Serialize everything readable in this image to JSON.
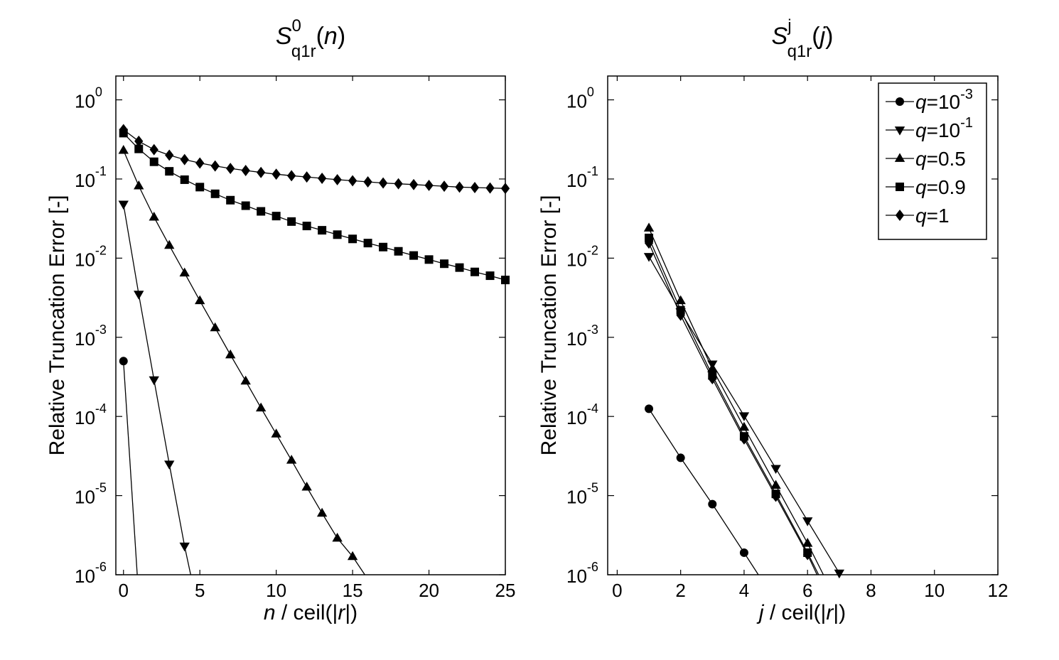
{
  "chart_data": [
    {
      "type": "line",
      "title": {
        "base": "S",
        "sup": "0",
        "sub": "q1r",
        "arg": "n"
      },
      "xlabel": {
        "var": "n",
        "rest": " / ceil(|",
        "inner": "r",
        "end": "|)"
      },
      "ylabel": "Relative Truncation Error [-]",
      "xlim": [
        -0.5,
        25
      ],
      "ylim": [
        1e-06,
        2
      ],
      "yscale": "log",
      "xticks": [
        0,
        5,
        10,
        15,
        20,
        25
      ],
      "xtick_labels": [
        "0",
        "5",
        "10",
        "15",
        "20",
        "25"
      ],
      "yticks": [
        1e-06,
        1e-05,
        0.0001,
        0.001,
        0.01,
        0.1,
        1
      ],
      "ytick_labels": [
        {
          "base": "10",
          "exp": "-6"
        },
        {
          "base": "10",
          "exp": "-5"
        },
        {
          "base": "10",
          "exp": "-4"
        },
        {
          "base": "10",
          "exp": "-3"
        },
        {
          "base": "10",
          "exp": "-2"
        },
        {
          "base": "10",
          "exp": "-1"
        },
        {
          "base": "10",
          "exp": "0"
        }
      ],
      "series": [
        {
          "name": "q=10^-3",
          "marker": "circle",
          "x": [
            0,
            0.9
          ],
          "y": [
            0.0005,
            1e-06
          ]
        },
        {
          "name": "q=10^-1",
          "marker": "triangle-down",
          "x": [
            0,
            1,
            2,
            3,
            4,
            4.4
          ],
          "y": [
            0.048,
            0.0035,
            0.00029,
            2.5e-05,
            2.3e-06,
            1e-06
          ]
        },
        {
          "name": "q=0.5",
          "marker": "triangle-up",
          "x": [
            0,
            1,
            2,
            3,
            4,
            5,
            6,
            7,
            8,
            9,
            10,
            11,
            12,
            13,
            14,
            15,
            15.8
          ],
          "y": [
            0.23,
            0.082,
            0.033,
            0.0145,
            0.0065,
            0.0029,
            0.00132,
            0.0006,
            0.00028,
            0.000128,
            6e-05,
            2.8e-05,
            1.28e-05,
            6e-06,
            2.9e-06,
            1.7e-06,
            1e-06
          ]
        },
        {
          "name": "q=0.9",
          "marker": "square",
          "x": [
            0,
            1,
            2,
            3,
            4,
            5,
            6,
            7,
            8,
            9,
            10,
            11,
            12,
            13,
            14,
            15,
            16,
            17,
            18,
            19,
            20,
            21,
            22,
            23,
            24,
            25
          ],
          "y": [
            0.38,
            0.24,
            0.165,
            0.125,
            0.098,
            0.079,
            0.065,
            0.054,
            0.046,
            0.039,
            0.034,
            0.029,
            0.0255,
            0.0225,
            0.0198,
            0.0175,
            0.0155,
            0.0138,
            0.0122,
            0.0108,
            0.0096,
            0.0085,
            0.0076,
            0.0067,
            0.006,
            0.0053
          ]
        },
        {
          "name": "q=1",
          "marker": "diamond",
          "x": [
            0,
            1,
            2,
            3,
            4,
            5,
            6,
            7,
            8,
            9,
            10,
            11,
            12,
            13,
            14,
            15,
            16,
            17,
            18,
            19,
            20,
            21,
            22,
            23,
            24,
            25
          ],
          "y": [
            0.42,
            0.3,
            0.235,
            0.2,
            0.176,
            0.159,
            0.146,
            0.136,
            0.128,
            0.121,
            0.115,
            0.11,
            0.106,
            0.102,
            0.098,
            0.095,
            0.092,
            0.089,
            0.087,
            0.085,
            0.083,
            0.081,
            0.079,
            0.078,
            0.077,
            0.076
          ]
        }
      ]
    },
    {
      "type": "line",
      "title": {
        "base": "S",
        "sup": "j",
        "sub": "q1r",
        "arg": "j"
      },
      "xlabel": {
        "var": "j",
        "rest": " / ceil(|",
        "inner": "r",
        "end": "|)"
      },
      "ylabel": "Relative Truncation Error [-]",
      "xlim": [
        -0.3,
        12
      ],
      "ylim": [
        1e-06,
        2
      ],
      "yscale": "log",
      "xticks": [
        0,
        2,
        4,
        6,
        8,
        10,
        12
      ],
      "xtick_labels": [
        "0",
        "2",
        "4",
        "6",
        "8",
        "10",
        "12"
      ],
      "yticks": [
        1e-06,
        1e-05,
        0.0001,
        0.001,
        0.01,
        0.1,
        1
      ],
      "ytick_labels": [
        {
          "base": "10",
          "exp": "-6"
        },
        {
          "base": "10",
          "exp": "-5"
        },
        {
          "base": "10",
          "exp": "-4"
        },
        {
          "base": "10",
          "exp": "-3"
        },
        {
          "base": "10",
          "exp": "-2"
        },
        {
          "base": "10",
          "exp": "-1"
        },
        {
          "base": "10",
          "exp": "0"
        }
      ],
      "legend": {
        "placement": "top-right",
        "entries": [
          {
            "var": "q",
            "eq": "=",
            "base": "10",
            "exp": "-3",
            "marker": "circle"
          },
          {
            "var": "q",
            "eq": "=",
            "base": "10",
            "exp": "-1",
            "marker": "triangle-down"
          },
          {
            "var": "q",
            "eq": "=",
            "base": "0.5",
            "exp": "",
            "marker": "triangle-up"
          },
          {
            "var": "q",
            "eq": "=",
            "base": "0.9",
            "exp": "",
            "marker": "square"
          },
          {
            "var": "q",
            "eq": "=",
            "base": "1",
            "exp": "",
            "marker": "diamond"
          }
        ]
      },
      "series": [
        {
          "name": "q=10^-3",
          "marker": "circle",
          "x": [
            1,
            2,
            3,
            4,
            4.45
          ],
          "y": [
            0.000125,
            3e-05,
            7.8e-06,
            1.9e-06,
            1e-06
          ]
        },
        {
          "name": "q=10^-1",
          "marker": "triangle-down",
          "x": [
            1,
            2,
            3,
            4,
            5,
            6,
            7
          ],
          "y": [
            0.0105,
            0.0021,
            0.00046,
            0.000102,
            2.2e-05,
            4.8e-06,
            1.05e-06
          ]
        },
        {
          "name": "q=0.5",
          "marker": "triangle-up",
          "x": [
            1,
            2,
            3,
            4,
            5,
            6,
            6.5
          ],
          "y": [
            0.024,
            0.0029,
            0.0004,
            7.3e-05,
            1.35e-05,
            2.5e-06,
            1e-06
          ]
        },
        {
          "name": "q=0.9",
          "marker": "square",
          "x": [
            1,
            2,
            3,
            4,
            5,
            6,
            6.35
          ],
          "y": [
            0.018,
            0.0022,
            0.00033,
            5.6e-05,
            1.05e-05,
            1.9e-06,
            1e-06
          ]
        },
        {
          "name": "q=1",
          "marker": "diamond",
          "x": [
            1,
            2,
            3,
            4,
            5,
            6,
            6.3
          ],
          "y": [
            0.0155,
            0.0019,
            0.0003,
            5.2e-05,
            9.8e-06,
            1.8e-06,
            1e-06
          ]
        }
      ]
    }
  ]
}
